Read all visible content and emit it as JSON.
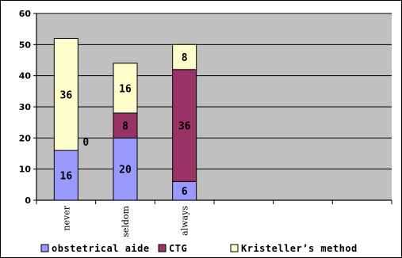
{
  "chart_data": {
    "type": "bar",
    "stacked": true,
    "categories": [
      "never",
      "seldom",
      "always"
    ],
    "empty_category_slots": 3,
    "series": [
      {
        "name": "obstetrical aide",
        "values": [
          16,
          20,
          6
        ],
        "labels": [
          "16",
          "20",
          "6"
        ]
      },
      {
        "name": "CTG",
        "values": [
          0,
          8,
          36
        ],
        "labels": [
          "0",
          "8",
          "36"
        ]
      },
      {
        "name": "Kristeller’s method",
        "values": [
          36,
          16,
          8
        ],
        "labels": [
          "36",
          "16",
          "8"
        ]
      }
    ],
    "colors": [
      "#9999ff",
      "#993366",
      "#ffffcc"
    ],
    "plot_background": "#c0c0c0",
    "ylim": [
      0,
      60
    ],
    "yticks": [
      0,
      10,
      20,
      30,
      40,
      50,
      60
    ],
    "grid": true,
    "legend_position": "bottom",
    "title": "",
    "xlabel": "",
    "ylabel": ""
  }
}
